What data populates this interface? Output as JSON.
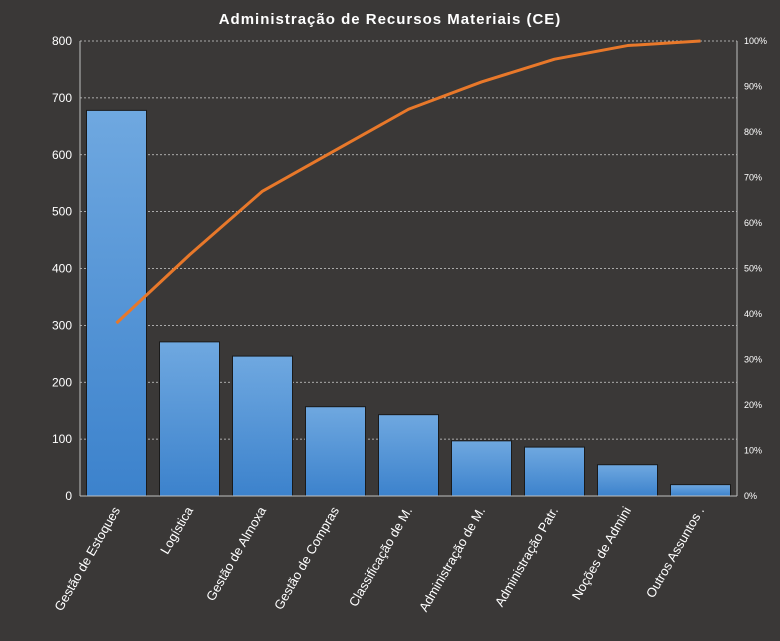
{
  "chart_data": {
    "type": "bar",
    "title": "Administração  de Recursos  Materiais  (CE)",
    "categories": [
      "Gestão de Estoques",
      "Logística",
      "Gestão de Almoxa",
      "Gestão de Compras",
      "Classificação de M.",
      "Administração de M.",
      "Administração Patr.",
      "Noções de Admini",
      "Outros Assuntos ."
    ],
    "series": [
      {
        "type": "bar",
        "values": [
          678,
          271,
          246,
          157,
          143,
          97,
          86,
          55,
          20
        ]
      },
      {
        "type": "line",
        "axis": "right",
        "values": [
          38,
          53,
          67,
          76,
          85,
          91,
          96,
          99,
          100
        ]
      }
    ],
    "ylim": [
      0,
      800
    ],
    "yticks": [
      0,
      100,
      200,
      300,
      400,
      500,
      600,
      700,
      800
    ],
    "y2lim": [
      0,
      100
    ],
    "y2ticks": [
      "0%",
      "10%",
      "20%",
      "30%",
      "40%",
      "50%",
      "60%",
      "70%",
      "80%",
      "90%",
      "100%"
    ],
    "grid": true,
    "colors": {
      "background": "#3a3837",
      "bar_top": "#6fa8e0",
      "bar_bottom": "#3c82cc",
      "line": "#e8782a",
      "grid": "#d0d0d0",
      "text": "#ffffff"
    }
  }
}
